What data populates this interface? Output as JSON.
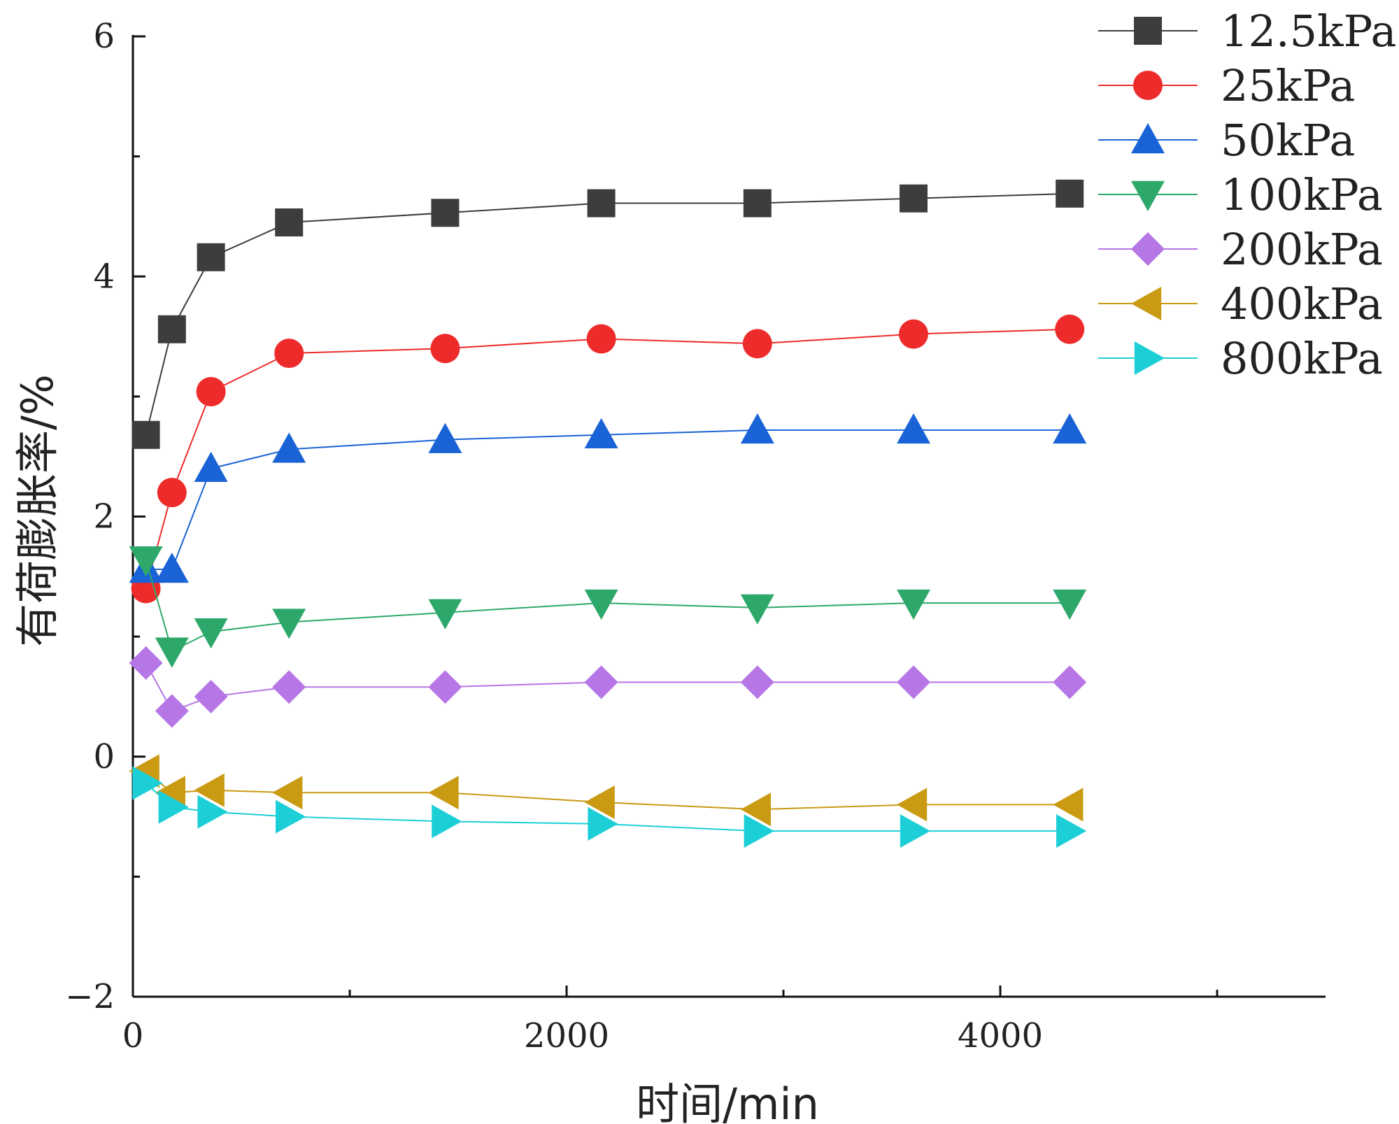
{
  "chart_data": {
    "type": "line",
    "title": "",
    "xlabel": "时间/min",
    "ylabel": "有荷膨胀率/%",
    "xlim": [
      0,
      5500
    ],
    "ylim": [
      -2,
      6
    ],
    "xticks": [
      0,
      2000,
      4000
    ],
    "xticks_minor": [
      1000,
      3000,
      5000
    ],
    "yticks": [
      -2,
      0,
      2,
      4,
      6
    ],
    "yticks_minor": [
      -1,
      1,
      3,
      5
    ],
    "xtick_labels": [
      "0",
      "2000",
      "4000"
    ],
    "ytick_labels": [
      "−2",
      "0",
      "2",
      "4",
      "6"
    ],
    "grid": false,
    "legend_position": "top-right",
    "x": [
      60,
      180,
      360,
      720,
      1440,
      2160,
      2880,
      3600,
      4320
    ],
    "series": [
      {
        "name": "12.5kPa",
        "color": "#3d3d3d",
        "marker": "square",
        "values": [
          2.68,
          3.56,
          4.16,
          4.45,
          4.53,
          4.61,
          4.61,
          4.65,
          4.69
        ]
      },
      {
        "name": "25kPa",
        "color": "#ee2b2b",
        "marker": "circle",
        "values": [
          1.4,
          2.2,
          3.04,
          3.36,
          3.4,
          3.48,
          3.44,
          3.52,
          3.56
        ]
      },
      {
        "name": "50kPa",
        "color": "#1a63d6",
        "marker": "triangle-up",
        "values": [
          1.56,
          1.56,
          2.4,
          2.56,
          2.64,
          2.68,
          2.72,
          2.72,
          2.72
        ]
      },
      {
        "name": "100kPa",
        "color": "#2ea86a",
        "marker": "triangle-down",
        "values": [
          1.64,
          0.88,
          1.04,
          1.12,
          1.2,
          1.28,
          1.24,
          1.28,
          1.28
        ]
      },
      {
        "name": "200kPa",
        "color": "#b776e6",
        "marker": "diamond",
        "values": [
          0.78,
          0.38,
          0.5,
          0.58,
          0.58,
          0.62,
          0.62,
          0.62,
          0.62
        ]
      },
      {
        "name": "400kPa",
        "color": "#c99a12",
        "marker": "triangle-left",
        "values": [
          -0.12,
          -0.3,
          -0.28,
          -0.3,
          -0.3,
          -0.38,
          -0.44,
          -0.4,
          -0.4
        ]
      },
      {
        "name": "800kPa",
        "color": "#1ccfd6",
        "marker": "triangle-right",
        "values": [
          -0.22,
          -0.42,
          -0.46,
          -0.5,
          -0.54,
          -0.56,
          -0.62,
          -0.62,
          -0.62
        ]
      }
    ]
  }
}
